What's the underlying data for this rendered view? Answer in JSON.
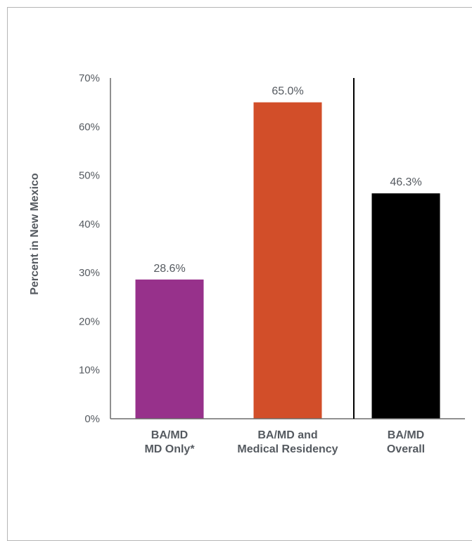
{
  "chart_data": {
    "type": "bar",
    "title": "",
    "xlabel": "",
    "ylabel": "Percent in New Mexico",
    "ylim": [
      0,
      70
    ],
    "yticks": [
      "0%",
      "10%",
      "20%",
      "30%",
      "40%",
      "50%",
      "60%",
      "70%"
    ],
    "grid": false,
    "categories": [
      [
        "BA/MD",
        "MD Only*"
      ],
      [
        "BA/MD and",
        "Medical Residency"
      ],
      [
        "BA/MD",
        "Overall"
      ]
    ],
    "values": [
      28.6,
      65.0,
      46.3
    ],
    "data_labels": [
      "28.6%",
      "65.0%",
      "46.3%"
    ],
    "colors": [
      "#97318b",
      "#d24e29",
      "#000000"
    ],
    "separator_after_category": 1
  }
}
